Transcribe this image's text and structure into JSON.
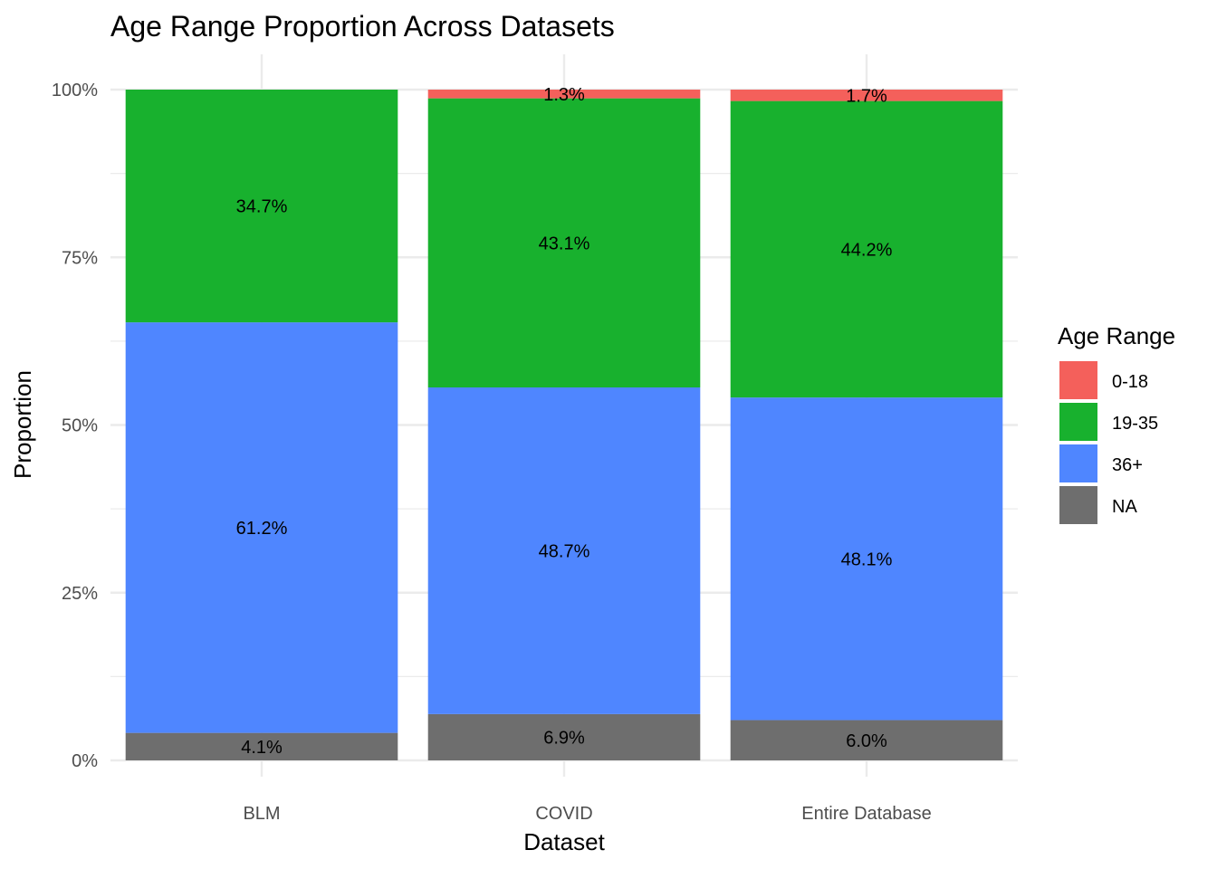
{
  "chart_data": {
    "type": "bar",
    "stacked": true,
    "title": "Age Range Proportion Across Datasets",
    "xlabel": "Dataset",
    "ylabel": "Proportion",
    "ylim": [
      0,
      1
    ],
    "y_ticks": [
      "0%",
      "25%",
      "50%",
      "75%",
      "100%"
    ],
    "grid": true,
    "legend_position": "right",
    "legend_title": "Age Range",
    "categories": [
      "BLM",
      "COVID",
      "Entire Database"
    ],
    "series": [
      {
        "name": "NA",
        "color": "#6e6e6e",
        "values": [
          0.041,
          0.069,
          0.06
        ],
        "labels": [
          "4.1%",
          "6.9%",
          "6.0%"
        ]
      },
      {
        "name": "36+",
        "color": "#4f86ff",
        "values": [
          0.612,
          0.487,
          0.481
        ],
        "labels": [
          "61.2%",
          "48.7%",
          "48.1%"
        ]
      },
      {
        "name": "19-35",
        "color": "#18b12e",
        "values": [
          0.347,
          0.431,
          0.442
        ],
        "labels": [
          "34.7%",
          "43.1%",
          "44.2%"
        ]
      },
      {
        "name": "0-18",
        "color": "#f4605b",
        "values": [
          0.0,
          0.013,
          0.017
        ],
        "labels": [
          "",
          "1.3%",
          "1.7%"
        ]
      }
    ],
    "legend_order": [
      "0-18",
      "19-35",
      "36+",
      "NA"
    ]
  }
}
